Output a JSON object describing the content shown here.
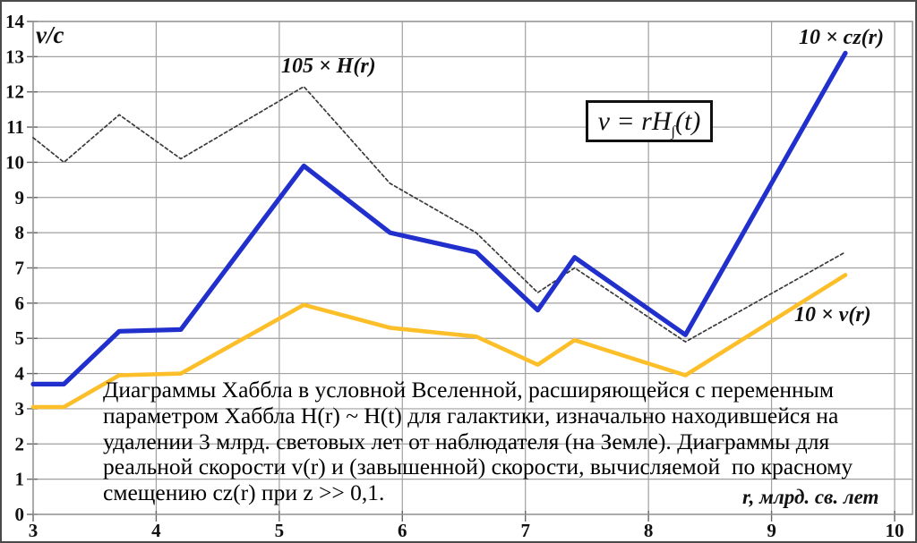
{
  "labels": {
    "y_axis": "v/c",
    "x_axis": "r, млрд. св. лет",
    "h_series": "105 × H(r)",
    "cz_series": "10 × cz(r)",
    "v_series": "10 × v(r)"
  },
  "formula": {
    "prefix": "v = rH",
    "sub": "∫",
    "suffix": "(t)"
  },
  "caption": {
    "lines": [
      "Диаграммы Хаббла в условной Вселенной, расширяющейся с переменным",
      "параметром Хаббла H(r) ~ H(t) для галактики, изначально находившейся на",
      "удалении 3 млрд. световых лет от наблюдателя (на Земле). Диаграммы для",
      "реальной скорости v(r) и (завышенной) скорости, вычисляемой  по красному",
      "смещению cz(r) при z >> 0,1."
    ]
  },
  "colors": {
    "cz_line": "#2130cc",
    "v_line": "#fcbf2a",
    "h_line": "#3a3a3a",
    "grid": "#a0a0a0",
    "border": "#8f8f8f",
    "tick_text": "#111111"
  },
  "chart_data": {
    "type": "line",
    "title": "",
    "xlabel": "r, млрд. св. лет",
    "ylabel": "v/c",
    "xlim": [
      3,
      10
    ],
    "ylim": [
      0,
      14
    ],
    "x_ticks": [
      3,
      4,
      5,
      6,
      7,
      8,
      9,
      10
    ],
    "y_ticks": [
      0,
      1,
      2,
      3,
      4,
      5,
      6,
      7,
      8,
      9,
      10,
      11,
      12,
      13,
      14
    ],
    "grid": true,
    "legend": "inline-labels",
    "x": [
      3.0,
      3.25,
      3.7,
      4.2,
      5.2,
      5.9,
      6.6,
      7.1,
      7.4,
      8.3,
      9.6
    ],
    "series": [
      {
        "key": "h",
        "name": "105 × H(r)",
        "style": "dashed",
        "values": [
          10.7,
          10.0,
          11.35,
          10.1,
          12.15,
          9.4,
          8.0,
          6.3,
          7.0,
          4.9,
          7.45
        ]
      },
      {
        "key": "v",
        "name": "10 × v(r)",
        "style": "solid",
        "values": [
          3.05,
          3.05,
          3.95,
          4.0,
          5.95,
          5.3,
          5.05,
          4.25,
          4.95,
          3.95,
          6.8
        ]
      },
      {
        "key": "cz",
        "name": "10 × cz(r)",
        "style": "solid",
        "values": [
          3.7,
          3.7,
          5.2,
          5.25,
          9.9,
          8.0,
          7.45,
          5.8,
          7.3,
          5.1,
          13.1
        ]
      }
    ]
  }
}
